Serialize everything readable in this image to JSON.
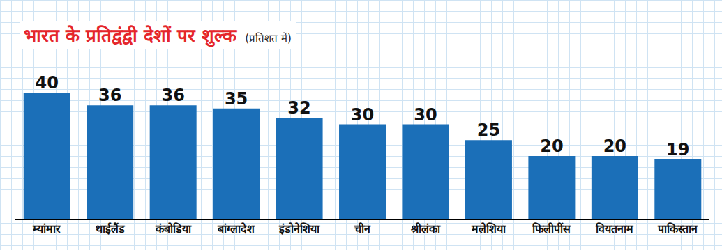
{
  "chart_data": {
    "type": "bar",
    "title": "भारत के प्रतिद्वंद्वी देशों पर शुल्क",
    "subtitle": "(प्रतिशत में)",
    "categories": [
      "म्यांमार",
      "थाईलैंड",
      "कंबोडिया",
      "बांग्लादेश",
      "इंडोनेशिया",
      "चीन",
      "श्रीलंका",
      "मलेशिया",
      "फिलीपींस",
      "वियतनाम",
      "पाकिस्तान"
    ],
    "values": [
      40,
      36,
      36,
      35,
      32,
      30,
      30,
      25,
      20,
      20,
      19
    ],
    "color": "#1b6fb8",
    "ylim": [
      0,
      40
    ],
    "data_labels": true,
    "tick_labels": "x"
  }
}
